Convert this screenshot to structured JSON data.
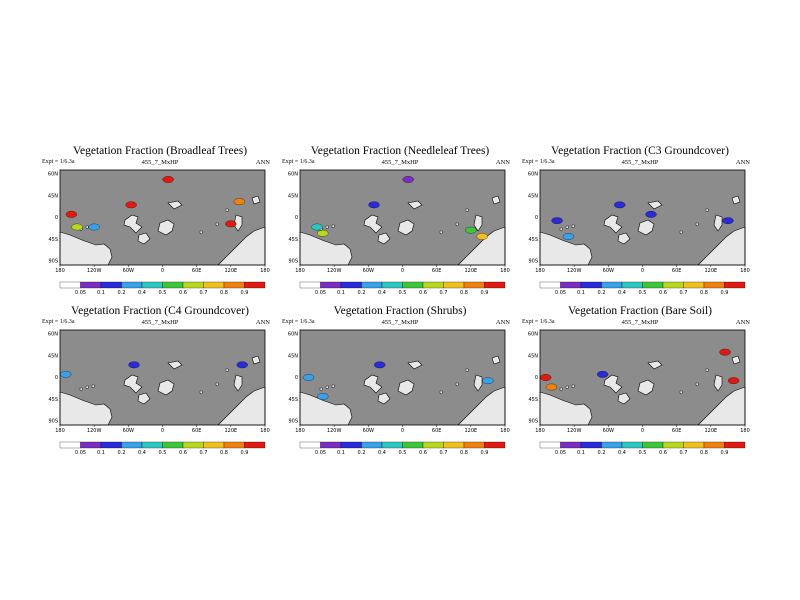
{
  "figure": {
    "experiment_id": "455_7_MxHP"
  },
  "common": {
    "subtitle": "Expt = 1/6.3a",
    "season": "ANN",
    "lat_ticks": [
      "60N",
      "45N",
      "0",
      "45S",
      "90S"
    ],
    "lon_ticks": [
      "180",
      "120W",
      "60W",
      "0",
      "60E",
      "120E",
      "180"
    ],
    "colorbar_ticks": [
      "0.05",
      "0.1",
      "0.2",
      "0.4",
      "0.5",
      "0.6",
      "0.7",
      "0.8",
      "0.9"
    ],
    "colorbar_colors": [
      "#ffffff",
      "#7a2dbf",
      "#2a2ad8",
      "#3aa0e8",
      "#2ec6c0",
      "#3cc63c",
      "#b8d820",
      "#f0c020",
      "#f08010",
      "#e01a10"
    ],
    "land_fill": "#e8e8e8",
    "ocean_fill": "#8c8c8c"
  },
  "chart_data": [
    {
      "type": "heatmap",
      "title": "Vegetation Fraction (Broadleaf Trees)",
      "experiment": "455_7_MxHP",
      "field": "broadleaf_trees",
      "units": "fraction",
      "colorbar_range": [
        0,
        1
      ],
      "hotspots": [
        {
          "lon": -160,
          "lat": -10,
          "level": 9
        },
        {
          "lon": -150,
          "lat": -30,
          "level": 6
        },
        {
          "lon": -120,
          "lat": -30,
          "level": 3
        },
        {
          "lon": -55,
          "lat": 5,
          "level": 9
        },
        {
          "lon": 10,
          "lat": 45,
          "level": 9
        },
        {
          "lon": 120,
          "lat": -25,
          "level": 9
        },
        {
          "lon": 135,
          "lat": 10,
          "level": 8
        }
      ]
    },
    {
      "type": "heatmap",
      "title": "Vegetation Fraction (Needleleaf Trees)",
      "experiment": "455_7_MxHP",
      "field": "needleleaf_trees",
      "units": "fraction",
      "colorbar_range": [
        0,
        1
      ],
      "hotspots": [
        {
          "lon": -150,
          "lat": -30,
          "level": 4
        },
        {
          "lon": -140,
          "lat": -40,
          "level": 6
        },
        {
          "lon": -50,
          "lat": 5,
          "level": 2
        },
        {
          "lon": 10,
          "lat": 45,
          "level": 1
        },
        {
          "lon": 120,
          "lat": -35,
          "level": 5
        },
        {
          "lon": 140,
          "lat": -45,
          "level": 7
        }
      ]
    },
    {
      "type": "heatmap",
      "title": "Vegetation Fraction (C3 Groundcover)",
      "experiment": "455_7_MxHP",
      "field": "c3_groundcover",
      "units": "fraction",
      "colorbar_range": [
        0,
        1
      ],
      "hotspots": [
        {
          "lon": -150,
          "lat": -20,
          "level": 2
        },
        {
          "lon": -130,
          "lat": -45,
          "level": 3
        },
        {
          "lon": -40,
          "lat": 5,
          "level": 2
        },
        {
          "lon": 15,
          "lat": -10,
          "level": 2
        },
        {
          "lon": 150,
          "lat": -20,
          "level": 2
        }
      ]
    },
    {
      "type": "heatmap",
      "title": "Vegetation Fraction (C4 Groundcover)",
      "experiment": "455_7_MxHP",
      "field": "c4_groundcover",
      "units": "fraction",
      "colorbar_range": [
        0,
        1
      ],
      "hotspots": [
        {
          "lon": -170,
          "lat": -10,
          "level": 3
        },
        {
          "lon": -50,
          "lat": 5,
          "level": 2
        },
        {
          "lon": 140,
          "lat": 5,
          "level": 2
        }
      ]
    },
    {
      "type": "heatmap",
      "title": "Vegetation Fraction (Shrubs)",
      "experiment": "455_7_MxHP",
      "field": "shrubs",
      "units": "fraction",
      "colorbar_range": [
        0,
        1
      ],
      "hotspots": [
        {
          "lon": -165,
          "lat": -15,
          "level": 3
        },
        {
          "lon": -140,
          "lat": -45,
          "level": 3
        },
        {
          "lon": -40,
          "lat": 5,
          "level": 2
        },
        {
          "lon": 150,
          "lat": -20,
          "level": 3
        }
      ]
    },
    {
      "type": "heatmap",
      "title": "Vegetation Fraction (Bare Soil)",
      "experiment": "455_7_MxHP",
      "field": "bare_soil",
      "units": "fraction",
      "colorbar_range": [
        0,
        1
      ],
      "hotspots": [
        {
          "lon": -170,
          "lat": -15,
          "level": 9
        },
        {
          "lon": -160,
          "lat": -30,
          "level": 8
        },
        {
          "lon": 160,
          "lat": -20,
          "level": 9
        },
        {
          "lon": 145,
          "lat": 25,
          "level": 9
        },
        {
          "lon": -70,
          "lat": -10,
          "level": 2
        }
      ]
    }
  ]
}
